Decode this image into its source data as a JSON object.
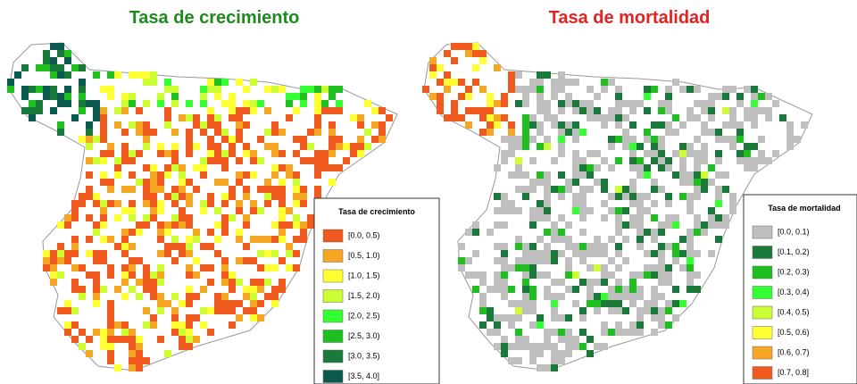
{
  "panels": [
    {
      "title": "Tasa de crecimiento",
      "title_color": "#1e8a1e",
      "legend": {
        "title": "Tasa de crecimiento",
        "items": [
          {
            "label": "[0.0, 0.5)",
            "color": "#f05a1e"
          },
          {
            "label": "[0.5, 1.0)",
            "color": "#f5a623"
          },
          {
            "label": "[1.0, 1.5)",
            "color": "#ffff33"
          },
          {
            "label": "[1.5, 2.0)",
            "color": "#ccff33"
          },
          {
            "label": "[2.0, 2.5)",
            "color": "#33ff33"
          },
          {
            "label": "[2.5, 3.0)",
            "color": "#1fbf1f"
          },
          {
            "label": "[3.0, 3.5)",
            "color": "#1a7a3a"
          },
          {
            "label": "[3.5, 4.0]",
            "color": "#0a5a50"
          }
        ]
      }
    },
    {
      "title": "Tasa de mortalidad",
      "title_color": "#e32222",
      "legend": {
        "title": "Tasa de mortalidad",
        "items": [
          {
            "label": "[0.0, 0.1)",
            "color": "#bfbfbf"
          },
          {
            "label": "[0.1, 0.2)",
            "color": "#1a7a3a"
          },
          {
            "label": "[0.2, 0.3)",
            "color": "#1fbf1f"
          },
          {
            "label": "[0.3, 0.4)",
            "color": "#33ff33"
          },
          {
            "label": "[0.4, 0.5)",
            "color": "#ccff33"
          },
          {
            "label": "[0.5, 0.6)",
            "color": "#ffff33"
          },
          {
            "label": "[0.6, 0.7)",
            "color": "#f5a623"
          },
          {
            "label": "[0.7, 0.8]",
            "color": "#f05a1e"
          }
        ]
      }
    }
  ]
}
